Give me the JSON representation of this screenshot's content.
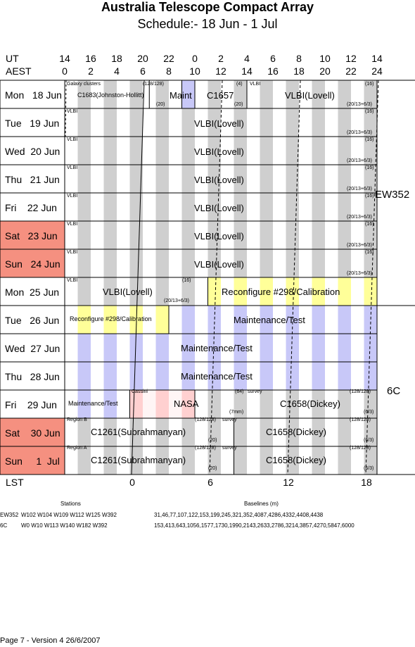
{
  "title": "Australia Telescope Compact Array",
  "subtitle": "Schedule:- 18 Jun - 1  Jul",
  "ut_label": "UT",
  "aest_label": "AEST",
  "lst_label": "LST",
  "ut_ticks": [
    "14",
    "16",
    "18",
    "20",
    "22",
    "0",
    "2",
    "4",
    "6",
    "8",
    "10",
    "12",
    "14"
  ],
  "aest_ticks": [
    "0",
    "2",
    "4",
    "6",
    "8",
    "10",
    "12",
    "14",
    "16",
    "18",
    "20",
    "22",
    "24"
  ],
  "lst_ticks": [
    "0",
    "6",
    "12",
    "18"
  ],
  "days": [
    {
      "label": "Mon   18 Jun",
      "weekend": false
    },
    {
      "label": "Tue   19 Jun",
      "weekend": false
    },
    {
      "label": "Wed  20 Jun",
      "weekend": false
    },
    {
      "label": "Thu   21 Jun",
      "weekend": false
    },
    {
      "label": "Fri    22 Jun",
      "weekend": false
    },
    {
      "label": "Sat   23 Jun",
      "weekend": true
    },
    {
      "label": "Sun   24 Jun",
      "weekend": true
    },
    {
      "label": "Mon  25 Jun",
      "weekend": false
    },
    {
      "label": "Tue   26 Jun",
      "weekend": false
    },
    {
      "label": "Wed  27 Jun",
      "weekend": false
    },
    {
      "label": "Thu   28 Jun",
      "weekend": false
    },
    {
      "label": "Fri    29 Jun",
      "weekend": false
    },
    {
      "label": "Sat    30 Jun",
      "weekend": true
    },
    {
      "label": "Sun     1  Jul",
      "weekend": true
    }
  ],
  "configs": [
    {
      "name": "EW352"
    },
    {
      "name": "6C"
    }
  ],
  "texts": {
    "galaxy_clusters": "Galaxy clusters",
    "c1683": "C1683(Johnston-Hollitt)",
    "n128_128": "(128/128)",
    "n20": "(20)",
    "maint": "Maint",
    "c1657": "C1657",
    "n4": "(4)",
    "vlbi_small": "VLBI",
    "vlbi_lovell": "VLBI(Lovell)",
    "n16": "(16)",
    "n20_13_6_3": "(20/13+6/3)",
    "reconfig": "Reconfigure #298/Calibration",
    "maint_test": "Maintenance/Test",
    "cassini": "Cassini",
    "nasa": "NASA",
    "n64": "(64)",
    "n7mm": "(7mm)",
    "survey": "survey",
    "c1658": "C1658(Dickey)",
    "n6_3": "(6/3)",
    "region_b": "Region B",
    "region_a": "Region A",
    "c1261": "C1261(Subrahmanyan)"
  },
  "footer": {
    "stations_header": "Stations",
    "baselines_header": "Baselines (m)",
    "row1_config": "EW352",
    "row1_stations": "W102 W104 W109 W112 W125 W392",
    "row1_baselines": "31,46,77,107,122,153,199,245,321,352,4087,4286,4332,4408,4438",
    "row2_config": "6C",
    "row2_stations": "W0 W10 W113 W140 W182 W392",
    "row2_baselines": "153,413,643,1056,1577,1730,1990,2143,2633,2786,3214,3857,4270,5847,6000",
    "page_note": "Page 7 - Version 4  26/6/2007"
  },
  "colors": {
    "weekend": "#f59080",
    "grey": "#cfcfcf",
    "lavender": "#c8c8f8",
    "yellow": "#ffff99",
    "pink": "#ffd0d0"
  }
}
